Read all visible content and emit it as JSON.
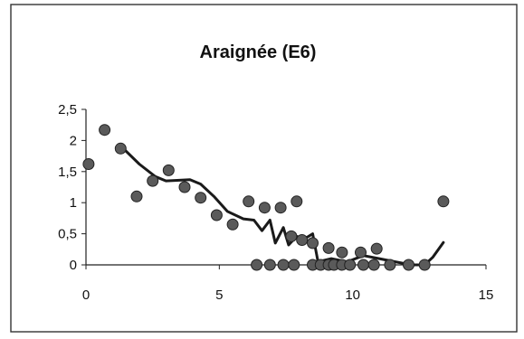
{
  "chart_data": {
    "type": "scatter",
    "title": "Araignée (E6)",
    "xlabel": "",
    "ylabel": "",
    "xlim": [
      0,
      15
    ],
    "ylim": [
      0,
      2.5
    ],
    "x_ticks": [
      "0",
      "5",
      "10",
      "15"
    ],
    "y_ticks": [
      "0",
      "0,5",
      "1",
      "1,5",
      "2",
      "2,5"
    ],
    "grid": false,
    "legend": "none",
    "colors": {
      "marker": "#5a5a5a",
      "marker_edge": "#222222",
      "line": "#1a1a1a",
      "frame": "#333333"
    },
    "series": [
      {
        "kind": "points",
        "points": [
          [
            0.1,
            1.62
          ],
          [
            0.7,
            2.17
          ],
          [
            1.3,
            1.87
          ],
          [
            1.9,
            1.1
          ],
          [
            2.5,
            1.35
          ],
          [
            3.1,
            1.52
          ],
          [
            3.7,
            1.25
          ],
          [
            4.3,
            1.08
          ],
          [
            4.9,
            0.8
          ],
          [
            5.5,
            0.65
          ],
          [
            6.1,
            1.02
          ],
          [
            6.7,
            0.92
          ],
          [
            7.3,
            0.92
          ],
          [
            7.9,
            1.02
          ],
          [
            7.7,
            0.46
          ],
          [
            8.1,
            0.4
          ],
          [
            8.5,
            0.35
          ],
          [
            9.1,
            0.27
          ],
          [
            9.6,
            0.2
          ],
          [
            10.3,
            0.2
          ],
          [
            10.9,
            0.26
          ],
          [
            6.4,
            0.0
          ],
          [
            6.9,
            0.0
          ],
          [
            7.4,
            0.0
          ],
          [
            7.8,
            0.0
          ],
          [
            8.5,
            0.0
          ],
          [
            8.8,
            0.0
          ],
          [
            9.1,
            0.0
          ],
          [
            9.3,
            0.0
          ],
          [
            9.6,
            0.0
          ],
          [
            9.9,
            0.0
          ],
          [
            10.4,
            0.0
          ],
          [
            10.8,
            0.0
          ],
          [
            11.4,
            0.0
          ],
          [
            12.1,
            0.0
          ],
          [
            12.7,
            0.0
          ],
          [
            13.4,
            1.02
          ]
        ]
      },
      {
        "kind": "line",
        "points": [
          [
            1.4,
            1.87
          ],
          [
            2.0,
            1.62
          ],
          [
            2.6,
            1.42
          ],
          [
            3.0,
            1.35
          ],
          [
            3.5,
            1.36
          ],
          [
            3.9,
            1.37
          ],
          [
            4.3,
            1.3
          ],
          [
            4.8,
            1.1
          ],
          [
            5.3,
            0.86
          ],
          [
            5.9,
            0.74
          ],
          [
            6.3,
            0.72
          ],
          [
            6.6,
            0.55
          ],
          [
            6.9,
            0.72
          ],
          [
            7.1,
            0.35
          ],
          [
            7.4,
            0.6
          ],
          [
            7.6,
            0.32
          ],
          [
            7.9,
            0.46
          ],
          [
            8.2,
            0.42
          ],
          [
            8.5,
            0.5
          ],
          [
            8.7,
            0.05
          ],
          [
            9.2,
            0.1
          ],
          [
            9.8,
            0.05
          ],
          [
            10.4,
            0.15
          ],
          [
            11.0,
            0.1
          ],
          [
            11.6,
            0.05
          ],
          [
            12.2,
            0.0
          ],
          [
            12.7,
            0.0
          ],
          [
            13.0,
            0.12
          ],
          [
            13.4,
            0.36
          ]
        ]
      }
    ]
  }
}
